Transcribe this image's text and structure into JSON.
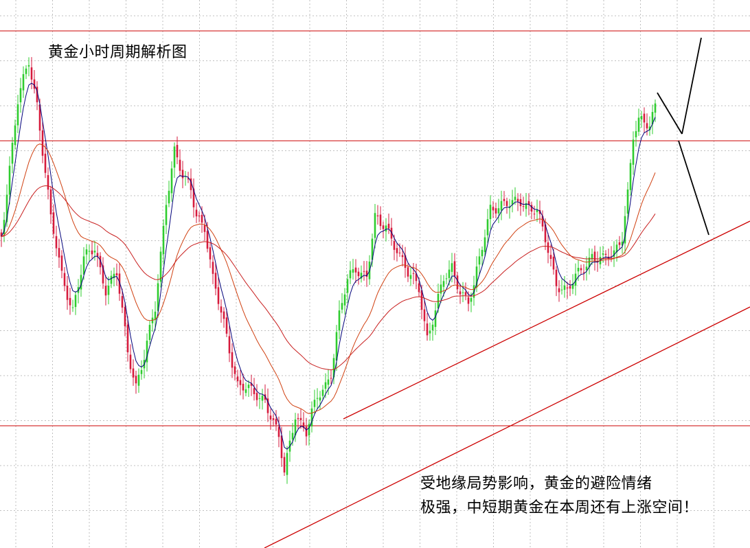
{
  "chart_data": {
    "type": "candlestick",
    "title": "黄金小时周期解析图",
    "annotation_lines": [
      "受地缘局势影响，黄金的避险情绪",
      "极强，中短期黄金在本周还有上涨空间！"
    ],
    "colors": {
      "bull": "#2ecc2e",
      "bear": "#d61a3c",
      "fast_ma": "#00007a",
      "slow_ma": "#d04010",
      "slower_ma": "#c81e1e",
      "trend_lines": "#cc0000",
      "grid": "#bfbfbf",
      "projection": "#000000"
    },
    "grid": true,
    "scale": "price shown without axis labels",
    "horizontal_levels": [
      "upper resistance",
      "middle resistance",
      "lower support"
    ],
    "trend_channel": "two parallel rising support lines",
    "projection": "black zig-zag projection after the last candle"
  }
}
